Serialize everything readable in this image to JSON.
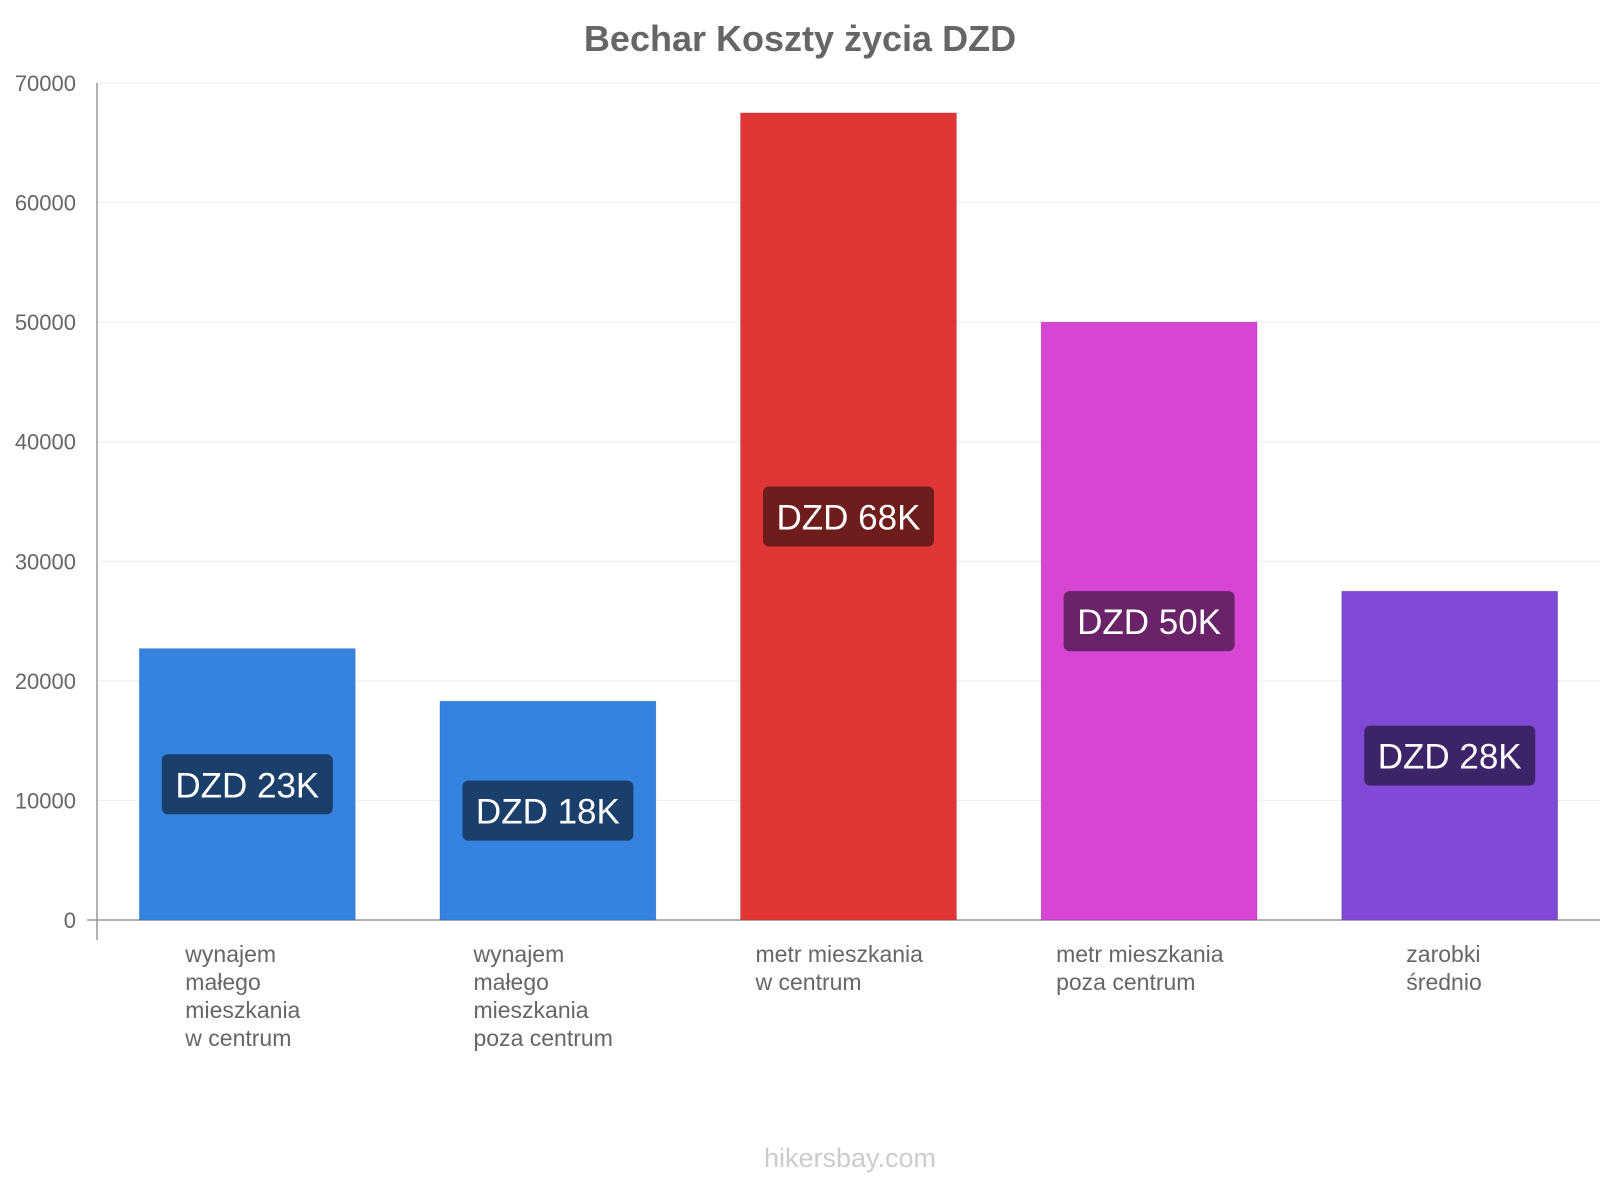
{
  "chart_data": {
    "type": "bar",
    "title": "Bechar Koszty życia DZD",
    "categories": [
      [
        "wynajem",
        "małego",
        "mieszkania",
        "w centrum"
      ],
      [
        "wynajem",
        "małego",
        "mieszkania",
        "poza centrum"
      ],
      [
        "metr mieszkania",
        "w centrum"
      ],
      [
        "metr mieszkania",
        "poza centrum"
      ],
      [
        "zarobki",
        "średnio"
      ]
    ],
    "values": [
      22700,
      18300,
      67500,
      50000,
      27500
    ],
    "value_labels": [
      "DZD 23K",
      "DZD 18K",
      "DZD 68K",
      "DZD 50K",
      "DZD 28K"
    ],
    "colors": [
      "#3583de",
      "#3583de",
      "#e03636",
      "#d646d2",
      "#8049d6"
    ],
    "label_bg_colors": [
      "#1b3f6b",
      "#1b3f6b",
      "#6f1c1c",
      "#6a2269",
      "#3d2468"
    ],
    "ylim": [
      0,
      70000
    ],
    "yticks": [
      0,
      10000,
      20000,
      30000,
      40000,
      50000,
      60000,
      70000
    ],
    "xlabel": "",
    "ylabel": "",
    "grid": true,
    "legend": "none"
  },
  "footer": {
    "credit": "hikersbay.com"
  }
}
